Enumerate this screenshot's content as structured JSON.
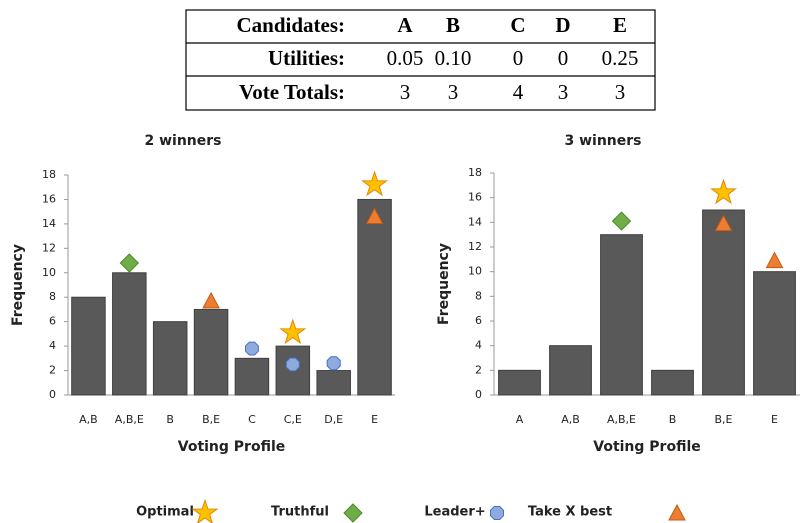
{
  "table": {
    "rows": [
      [
        "Candidates:",
        "A",
        "B",
        "C",
        "D",
        "E"
      ],
      [
        "Utilities:",
        "0.05",
        "0.10",
        "0",
        "0",
        "0.25"
      ],
      [
        "Vote Totals:",
        "3",
        "3",
        "4",
        "3",
        "3"
      ]
    ]
  },
  "chart_data": [
    {
      "type": "bar",
      "title": "2 winners",
      "x_label": "Voting Profile",
      "y_label": "Frequency",
      "categories": [
        "A,B",
        "A,B,E",
        "B",
        "B,E",
        "C",
        "C,E",
        "D,E",
        "E"
      ],
      "values": [
        8,
        10,
        6,
        7,
        3,
        4,
        2,
        16
      ],
      "color": "#595959",
      "ylim": [
        0,
        18
      ],
      "yticks": [
        0,
        2,
        4,
        6,
        8,
        10,
        12,
        14,
        16,
        18
      ],
      "series": [
        {
          "name": "Optimal",
          "color": "#FFC000",
          "marker": "star",
          "values": [
            null,
            null,
            null,
            null,
            null,
            5.1,
            null,
            17.2
          ]
        },
        {
          "name": "Truthful",
          "color": "#70AD47",
          "marker": "diamond",
          "values": [
            null,
            10.8,
            null,
            null,
            null,
            null,
            null,
            null
          ]
        },
        {
          "name": "Leader+",
          "color": "#8FAADC",
          "marker": "octagon",
          "values": [
            null,
            null,
            null,
            null,
            3.8,
            2.5,
            2.6,
            null
          ]
        },
        {
          "name": "Take X best",
          "color": "#ED7D31",
          "marker": "triangle",
          "values": [
            null,
            null,
            null,
            7.7,
            null,
            null,
            null,
            14.6
          ]
        }
      ]
    },
    {
      "type": "bar",
      "title": "3 winners",
      "x_label": "Voting Profile",
      "y_label": "Frequency",
      "categories": [
        "A",
        "A,B",
        "A,B,E",
        "B",
        "B,E",
        "E"
      ],
      "values": [
        2,
        4,
        13,
        2,
        15,
        10
      ],
      "color": "#595959",
      "ylim": [
        0,
        18
      ],
      "yticks": [
        0,
        2,
        4,
        6,
        8,
        10,
        12,
        14,
        16,
        18
      ],
      "series": [
        {
          "name": "Optimal",
          "color": "#FFC000",
          "marker": "star",
          "values": [
            null,
            null,
            null,
            null,
            16.4,
            null
          ]
        },
        {
          "name": "Truthful",
          "color": "#70AD47",
          "marker": "diamond",
          "values": [
            null,
            null,
            14.1,
            null,
            null,
            null
          ]
        },
        {
          "name": "Leader+",
          "color": "#8FAADC",
          "marker": "octagon",
          "values": [
            null,
            null,
            null,
            null,
            null,
            null
          ]
        },
        {
          "name": "Take X best",
          "color": "#ED7D31",
          "marker": "triangle",
          "values": [
            null,
            null,
            null,
            null,
            13.9,
            10.9
          ]
        }
      ]
    }
  ]
}
